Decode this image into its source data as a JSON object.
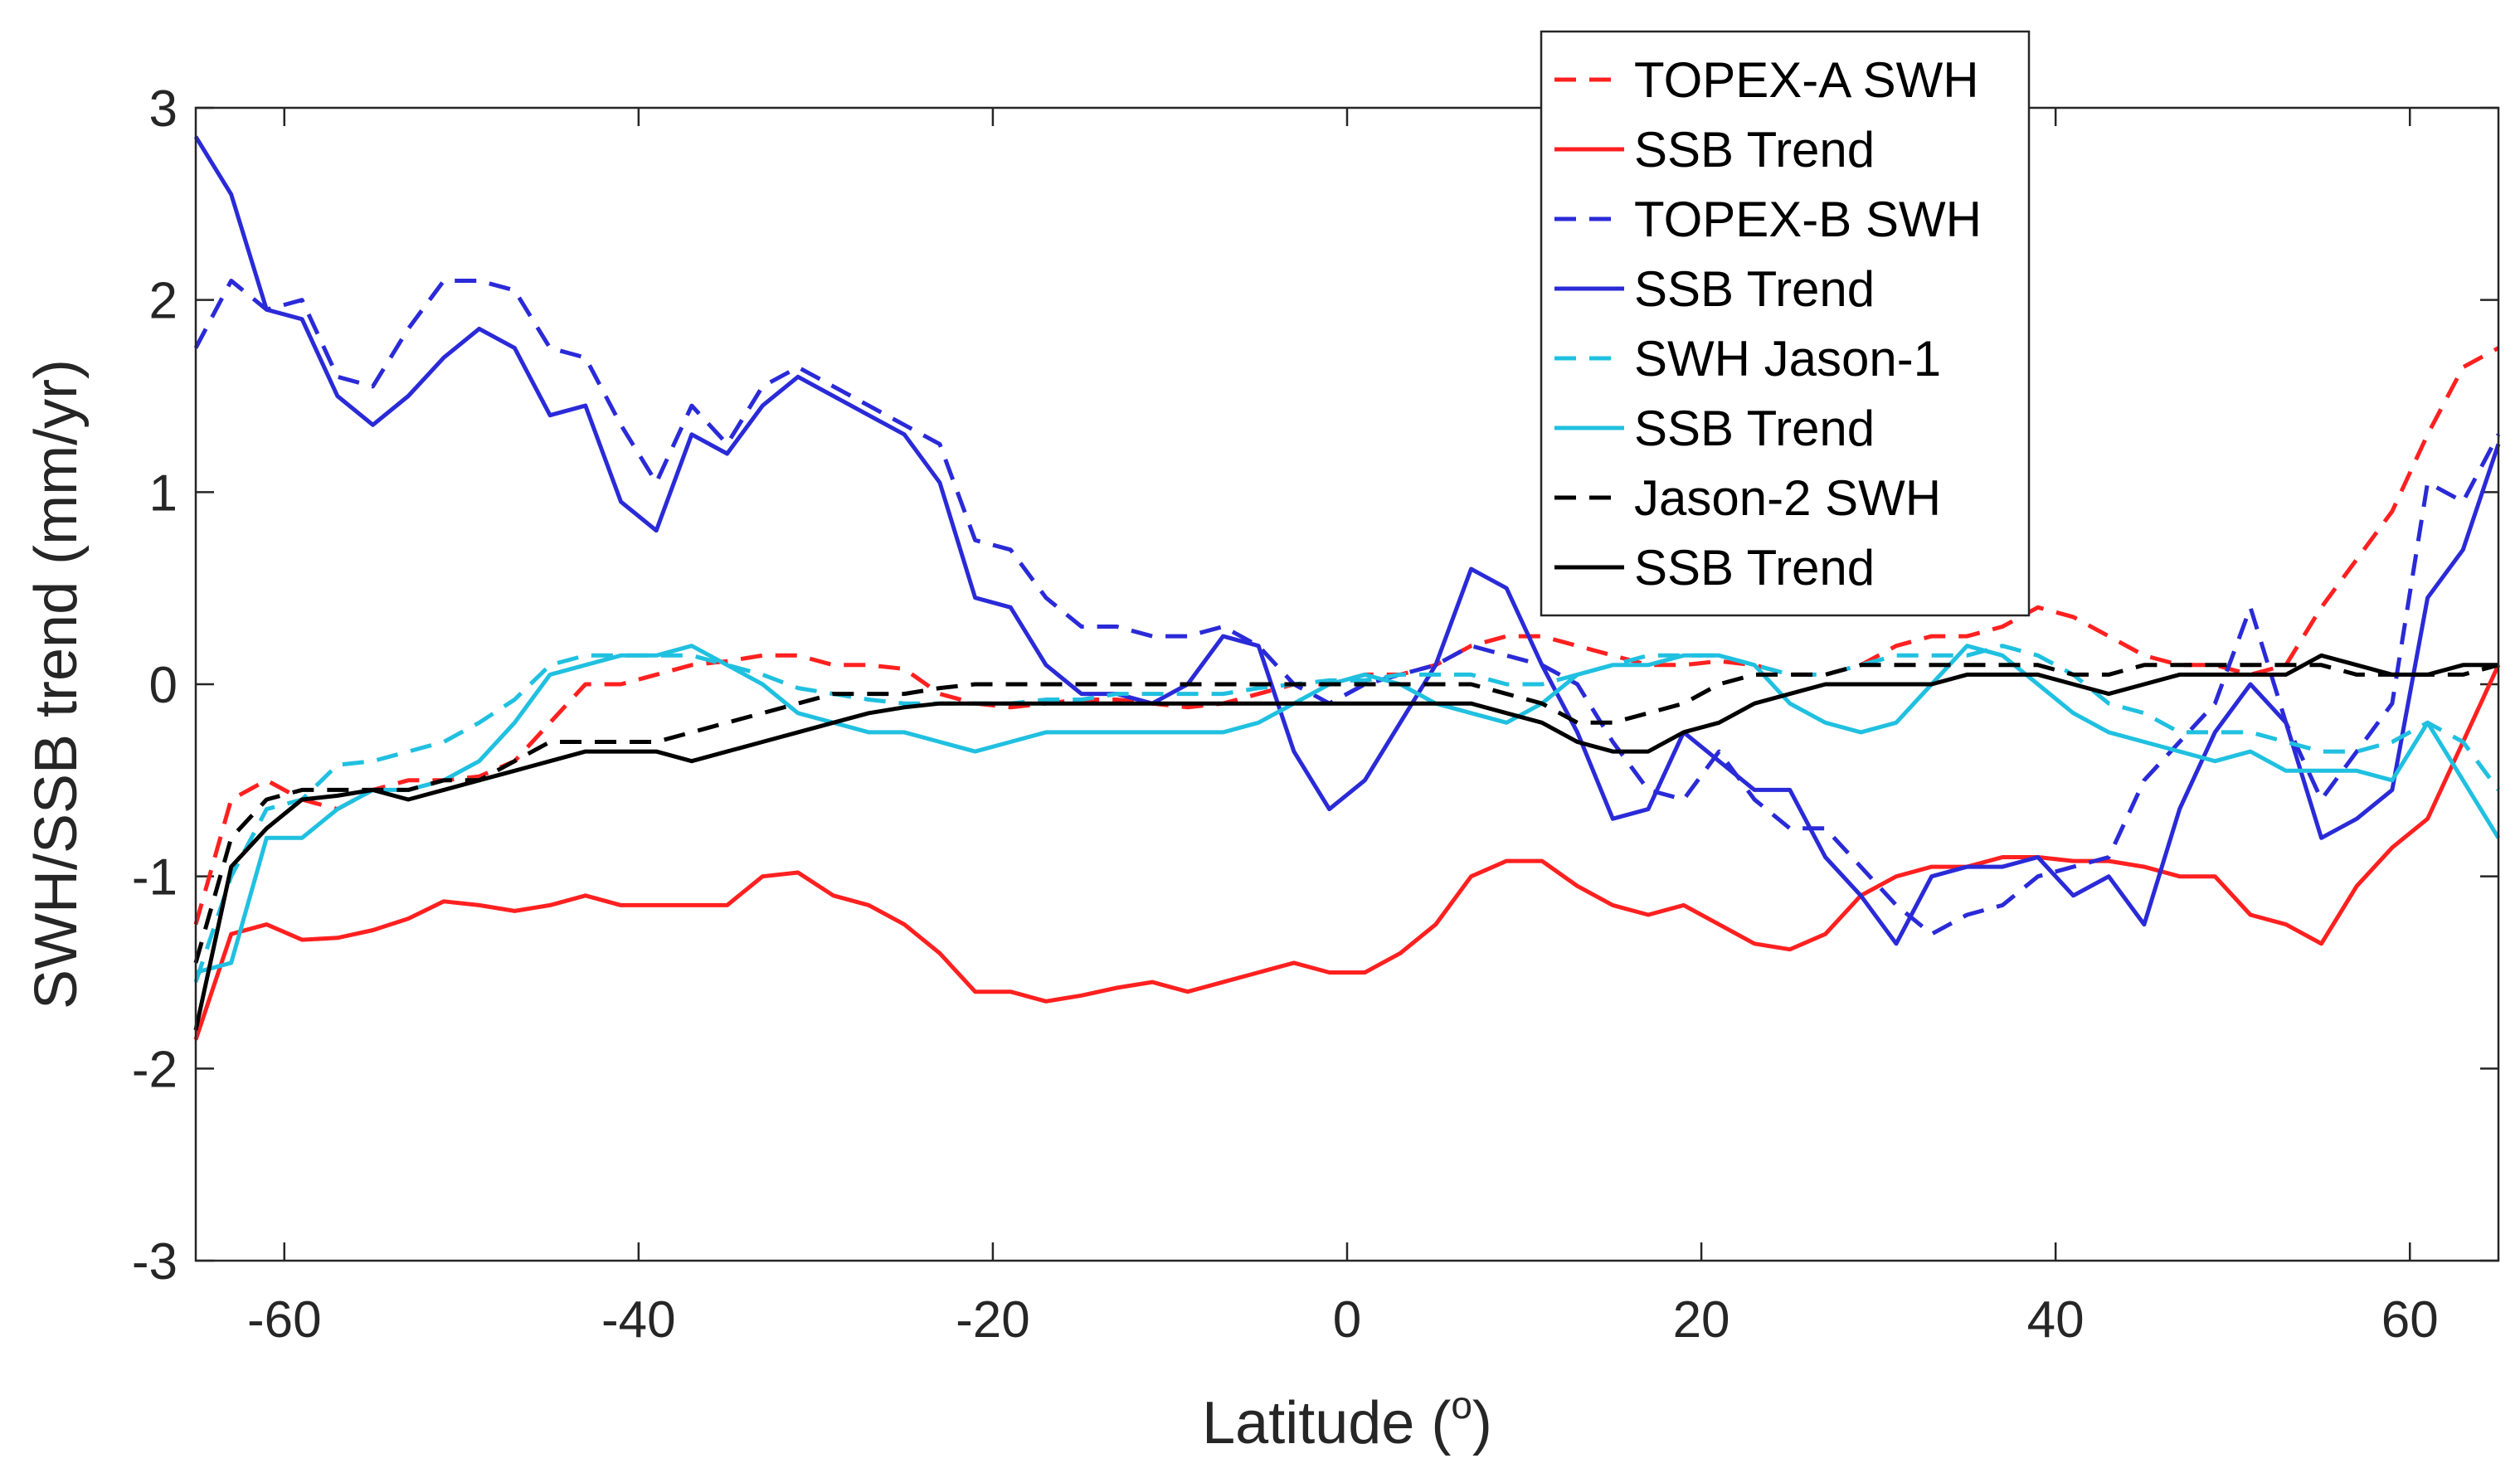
{
  "chart_data": {
    "type": "line",
    "title": "",
    "xlabel": "Latitude (",
    "xlabel_sup": "o",
    "xlabel_end": ")",
    "ylabel": "SWH/SSB trend (mm/yr)",
    "xlim": [
      -65,
      65
    ],
    "ylim": [
      -3,
      3
    ],
    "xticks": [
      -60,
      -40,
      -20,
      0,
      20,
      40,
      60
    ],
    "yticks": [
      -3,
      -2,
      -1,
      0,
      1,
      2,
      3
    ],
    "x": [
      -65,
      -63,
      -61,
      -59,
      -57,
      -55,
      -53,
      -51,
      -49,
      -47,
      -45,
      -43,
      -41,
      -39,
      -37,
      -35,
      -33,
      -31,
      -29,
      -27,
      -25,
      -23,
      -21,
      -19,
      -17,
      -15,
      -13,
      -11,
      -9,
      -7,
      -5,
      -3,
      -1,
      1,
      3,
      5,
      7,
      9,
      11,
      13,
      15,
      17,
      19,
      21,
      23,
      25,
      27,
      29,
      31,
      33,
      35,
      37,
      39,
      41,
      43,
      45,
      47,
      49,
      51,
      53,
      55,
      57,
      59,
      61,
      63,
      65
    ],
    "legend_position": "top-right-outside",
    "series": [
      {
        "name": "TOPEX-A SWH",
        "color": "#ff2020",
        "dash": true,
        "values": [
          -1.25,
          -0.6,
          -0.5,
          -0.6,
          -0.65,
          -0.55,
          -0.5,
          -0.5,
          -0.48,
          -0.4,
          -0.2,
          0.0,
          0.0,
          0.05,
          0.1,
          0.12,
          0.15,
          0.15,
          0.1,
          0.1,
          0.08,
          -0.05,
          -0.1,
          -0.12,
          -0.1,
          -0.08,
          -0.08,
          -0.1,
          -0.12,
          -0.1,
          -0.05,
          0.0,
          0.0,
          0.05,
          0.05,
          0.1,
          0.2,
          0.25,
          0.25,
          0.2,
          0.15,
          0.1,
          0.1,
          0.12,
          0.1,
          0.05,
          0.05,
          0.1,
          0.2,
          0.25,
          0.25,
          0.3,
          0.4,
          0.35,
          0.25,
          0.15,
          0.1,
          0.1,
          0.05,
          0.1,
          0.4,
          0.65,
          0.9,
          1.3,
          1.65,
          1.75
        ]
      },
      {
        "name": "SSB Trend",
        "color": "#ff2020",
        "dash": false,
        "values": [
          -1.85,
          -1.3,
          -1.25,
          -1.33,
          -1.32,
          -1.28,
          -1.22,
          -1.13,
          -1.15,
          -1.18,
          -1.15,
          -1.1,
          -1.15,
          -1.15,
          -1.15,
          -1.15,
          -1.0,
          -0.98,
          -1.1,
          -1.15,
          -1.25,
          -1.4,
          -1.6,
          -1.6,
          -1.65,
          -1.62,
          -1.58,
          -1.55,
          -1.6,
          -1.55,
          -1.5,
          -1.45,
          -1.5,
          -1.5,
          -1.4,
          -1.25,
          -1.0,
          -0.92,
          -0.92,
          -1.05,
          -1.15,
          -1.2,
          -1.15,
          -1.25,
          -1.35,
          -1.38,
          -1.3,
          -1.1,
          -1.0,
          -0.95,
          -0.95,
          -0.9,
          -0.9,
          -0.92,
          -0.92,
          -0.95,
          -1.0,
          -1.0,
          -1.2,
          -1.25,
          -1.35,
          -1.05,
          -0.85,
          -0.7,
          -0.3,
          0.1
        ]
      },
      {
        "name": "TOPEX-B SWH",
        "color": "#2a2ad8",
        "dash": true,
        "values": [
          1.75,
          2.1,
          1.95,
          2.0,
          1.6,
          1.55,
          1.85,
          2.1,
          2.1,
          2.05,
          1.75,
          1.7,
          1.35,
          1.05,
          1.45,
          1.25,
          1.55,
          1.65,
          1.55,
          1.45,
          1.35,
          1.25,
          0.75,
          0.7,
          0.45,
          0.3,
          0.3,
          0.25,
          0.25,
          0.3,
          0.2,
          0.0,
          -0.1,
          0.0,
          0.05,
          0.1,
          0.2,
          0.15,
          0.1,
          0.0,
          -0.3,
          -0.55,
          -0.6,
          -0.35,
          -0.6,
          -0.75,
          -0.75,
          -0.95,
          -1.15,
          -1.3,
          -1.2,
          -1.15,
          -1.0,
          -0.95,
          -0.9,
          -0.5,
          -0.3,
          -0.1,
          0.4,
          -0.2,
          -0.6,
          -0.35,
          -0.1,
          1.05,
          0.95,
          1.3
        ]
      },
      {
        "name": "SSB Trend",
        "color": "#2a2ad8",
        "dash": false,
        "values": [
          2.85,
          2.55,
          1.95,
          1.9,
          1.5,
          1.35,
          1.5,
          1.7,
          1.85,
          1.75,
          1.4,
          1.45,
          0.95,
          0.8,
          1.3,
          1.2,
          1.45,
          1.6,
          1.5,
          1.4,
          1.3,
          1.05,
          0.45,
          0.4,
          0.1,
          -0.05,
          -0.05,
          -0.1,
          0.0,
          0.25,
          0.2,
          -0.35,
          -0.65,
          -0.5,
          -0.2,
          0.1,
          0.6,
          0.5,
          0.1,
          -0.25,
          -0.7,
          -0.65,
          -0.25,
          -0.4,
          -0.55,
          -0.55,
          -0.9,
          -1.1,
          -1.35,
          -1.0,
          -0.95,
          -0.95,
          -0.9,
          -1.1,
          -1.0,
          -1.25,
          -0.65,
          -0.25,
          0.0,
          -0.2,
          -0.8,
          -0.7,
          -0.55,
          0.45,
          0.7,
          1.25
        ]
      },
      {
        "name": "SWH Jason-1",
        "color": "#20c0e0",
        "dash": true,
        "values": [
          -1.55,
          -1.0,
          -0.65,
          -0.6,
          -0.42,
          -0.4,
          -0.35,
          -0.3,
          -0.2,
          -0.08,
          0.1,
          0.15,
          0.15,
          0.15,
          0.15,
          0.1,
          0.05,
          -0.02,
          -0.05,
          -0.08,
          -0.1,
          -0.1,
          -0.1,
          -0.1,
          -0.08,
          -0.08,
          -0.05,
          -0.05,
          -0.05,
          -0.05,
          -0.02,
          0.0,
          0.02,
          0.02,
          0.05,
          0.05,
          0.05,
          0.0,
          0.0,
          0.05,
          0.1,
          0.15,
          0.15,
          0.15,
          0.1,
          0.05,
          0.05,
          0.1,
          0.15,
          0.15,
          0.15,
          0.2,
          0.15,
          0.05,
          -0.1,
          -0.15,
          -0.25,
          -0.25,
          -0.25,
          -0.3,
          -0.35,
          -0.35,
          -0.3,
          -0.2,
          -0.3,
          -0.55
        ]
      },
      {
        "name": "SSB Trend",
        "color": "#20c0e0",
        "dash": false,
        "values": [
          -1.5,
          -1.45,
          -0.8,
          -0.8,
          -0.65,
          -0.55,
          -0.55,
          -0.5,
          -0.4,
          -0.2,
          0.05,
          0.1,
          0.15,
          0.15,
          0.2,
          0.1,
          0.0,
          -0.15,
          -0.2,
          -0.25,
          -0.25,
          -0.3,
          -0.35,
          -0.3,
          -0.25,
          -0.25,
          -0.25,
          -0.25,
          -0.25,
          -0.25,
          -0.2,
          -0.1,
          0.0,
          0.05,
          0.0,
          -0.1,
          -0.15,
          -0.2,
          -0.1,
          0.05,
          0.1,
          0.1,
          0.15,
          0.15,
          0.1,
          -0.1,
          -0.2,
          -0.25,
          -0.2,
          0.0,
          0.2,
          0.15,
          0.0,
          -0.15,
          -0.25,
          -0.3,
          -0.35,
          -0.4,
          -0.35,
          -0.45,
          -0.45,
          -0.45,
          -0.5,
          -0.2,
          -0.5,
          -0.8
        ]
      },
      {
        "name": "Jason-2 SWH",
        "color": "#000000",
        "dash": true,
        "values": [
          -1.45,
          -0.8,
          -0.6,
          -0.55,
          -0.55,
          -0.55,
          -0.55,
          -0.5,
          -0.5,
          -0.4,
          -0.3,
          -0.3,
          -0.3,
          -0.3,
          -0.25,
          -0.2,
          -0.15,
          -0.1,
          -0.05,
          -0.05,
          -0.05,
          -0.02,
          0.0,
          0.0,
          0.0,
          0.0,
          0.0,
          0.0,
          0.0,
          0.0,
          0.0,
          0.0,
          0.0,
          0.0,
          0.0,
          0.0,
          0.0,
          -0.05,
          -0.1,
          -0.2,
          -0.2,
          -0.15,
          -0.1,
          0.0,
          0.05,
          0.05,
          0.05,
          0.1,
          0.1,
          0.1,
          0.1,
          0.1,
          0.1,
          0.05,
          0.05,
          0.1,
          0.1,
          0.1,
          0.1,
          0.1,
          0.1,
          0.05,
          0.05,
          0.05,
          0.05,
          0.1
        ]
      },
      {
        "name": "SSB Trend",
        "color": "#000000",
        "dash": false,
        "values": [
          -1.8,
          -0.95,
          -0.75,
          -0.6,
          -0.58,
          -0.55,
          -0.6,
          -0.55,
          -0.5,
          -0.45,
          -0.4,
          -0.35,
          -0.35,
          -0.35,
          -0.4,
          -0.35,
          -0.3,
          -0.25,
          -0.2,
          -0.15,
          -0.12,
          -0.1,
          -0.1,
          -0.1,
          -0.1,
          -0.1,
          -0.1,
          -0.1,
          -0.1,
          -0.1,
          -0.1,
          -0.1,
          -0.1,
          -0.1,
          -0.1,
          -0.1,
          -0.1,
          -0.15,
          -0.2,
          -0.3,
          -0.35,
          -0.35,
          -0.25,
          -0.2,
          -0.1,
          -0.05,
          0.0,
          0.0,
          0.0,
          0.0,
          0.05,
          0.05,
          0.05,
          0.0,
          -0.05,
          0.0,
          0.05,
          0.05,
          0.05,
          0.05,
          0.15,
          0.1,
          0.05,
          0.05,
          0.1,
          0.1
        ]
      }
    ]
  }
}
